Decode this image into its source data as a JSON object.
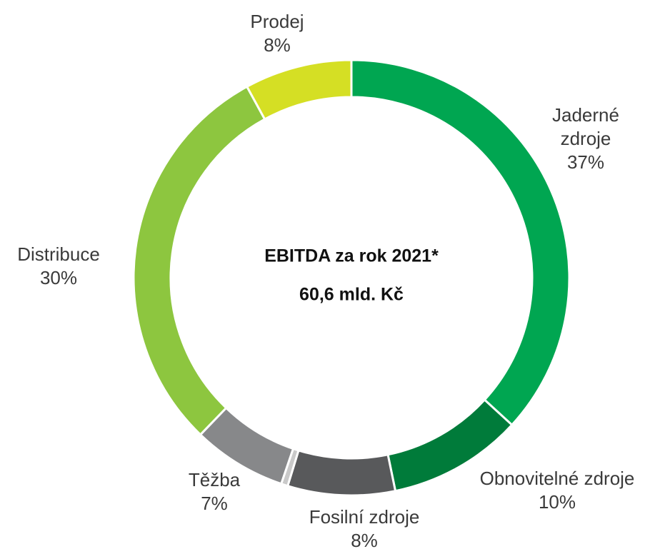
{
  "chart_data": {
    "type": "donut",
    "title": "EBITDA za rok 2021*",
    "subtitle": "60,6 mld. Kč",
    "categories": [
      "Jaderné zdroje",
      "Obnovitelné zdroje",
      "Fosilní zdroje",
      null,
      "Těžba",
      "Distribuce",
      "Prodej"
    ],
    "values": [
      37,
      10,
      8,
      0.5,
      7,
      30,
      8
    ],
    "value_labels": [
      "37%",
      "10%",
      "8%",
      null,
      "7%",
      "30%",
      "8%"
    ],
    "colors": [
      "#00a651",
      "#007b3a",
      "#58595b",
      "#c9c9c9",
      "#87888a",
      "#8dc63f",
      "#d5df24"
    ]
  }
}
